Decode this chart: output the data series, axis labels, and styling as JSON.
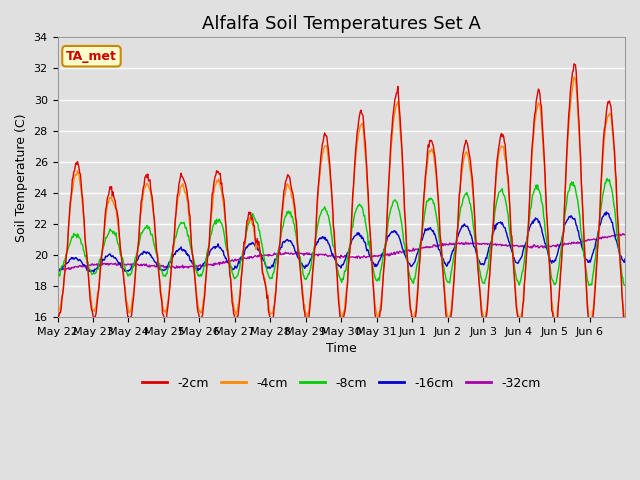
{
  "title": "Alfalfa Soil Temperatures Set A",
  "xlabel": "Time",
  "ylabel": "Soil Temperature (C)",
  "ylim": [
    16,
    34
  ],
  "n_days": 16,
  "background_color": "#e0e0e0",
  "plot_bg_color": "#e0e0e0",
  "colors": {
    "-2cm": "#dd0000",
    "-4cm": "#ff8800",
    "-8cm": "#00cc00",
    "-16cm": "#0000cc",
    "-32cm": "#aa00aa"
  },
  "legend_labels": [
    "-2cm",
    "-4cm",
    "-8cm",
    "-16cm",
    "-32cm"
  ],
  "annotation_text": "TA_met",
  "annotation_color": "#cc0000",
  "annotation_bg": "#ffffcc",
  "annotation_border": "#cc8800",
  "tick_labels": [
    "May 22",
    "May 23",
    "May 24",
    "May 25",
    "May 26",
    "May 27",
    "May 28",
    "May 29",
    "May 30",
    "May 31",
    "Jun 1",
    "Jun 2",
    "Jun 3",
    "Jun 4",
    "Jun 5",
    "Jun 6"
  ],
  "tick_positions": [
    0,
    1,
    2,
    3,
    4,
    5,
    6,
    7,
    8,
    9,
    10,
    11,
    12,
    13,
    14,
    15
  ],
  "grid_color": "#ffffff",
  "title_fontsize": 13,
  "axis_label_fontsize": 9,
  "tick_fontsize": 8
}
